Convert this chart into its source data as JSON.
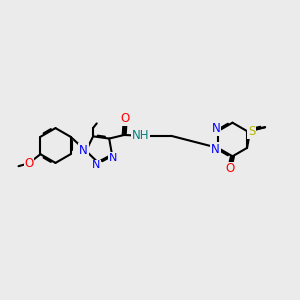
{
  "background_color": "#ebebeb",
  "bond_color": "#000000",
  "n_color": "#0000ff",
  "o_color": "#ff0000",
  "s_color": "#b8b800",
  "nh_color": "#008080",
  "figsize": [
    3.0,
    3.0
  ],
  "dpi": 100,
  "xlim": [
    0,
    10
  ],
  "ylim": [
    0,
    10
  ]
}
